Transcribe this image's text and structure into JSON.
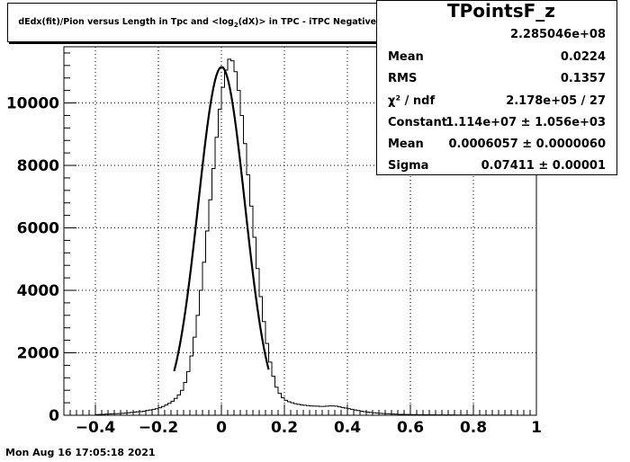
{
  "title_box": {
    "title": "dEdx(fit)/Pion versus Length in Tpc and <log",
    "subscript": "2",
    "title_rest": "(dX)> in TPC - iTPC Negative z projection"
  },
  "stats": {
    "name": "TPointsF_z",
    "rows": [
      {
        "label": "",
        "value": "2.285046e+08"
      },
      {
        "label": "Mean",
        "value": "0.0224"
      },
      {
        "label": "RMS",
        "value": "0.1357"
      },
      {
        "label": "χ² / ndf",
        "value": "2.178e+05 / 27"
      },
      {
        "label": "Constant",
        "value": "1.114e+07 ± 1.056e+03"
      },
      {
        "label": "Mean",
        "value": "0.0006057 ± 0.0000060"
      },
      {
        "label": "Sigma",
        "value": "0.07411 ± 0.00001"
      }
    ]
  },
  "timestamp": "Mon Aug 16 17:05:18 2021",
  "chart_data": {
    "type": "bar",
    "title": "dEdx(fit)/Pion versus Length in Tpc and <log2(dX)> in TPC - iTPC Negative z projection",
    "xlim": [
      -0.5,
      1.0
    ],
    "ylim": [
      0,
      11800
    ],
    "grid": true,
    "xticks": [
      "−0.4",
      "−0.2",
      "0",
      "0.2",
      "0.4",
      "0.6",
      "0.8",
      "1"
    ],
    "xtick_values": [
      -0.4,
      -0.2,
      0,
      0.2,
      0.4,
      0.6,
      0.8,
      1.0
    ],
    "yticks": [
      "0",
      "2000",
      "4000",
      "6000",
      "8000",
      "10000"
    ],
    "ytick_values": [
      0,
      2000,
      4000,
      6000,
      8000,
      10000
    ],
    "histogram": {
      "bin_width": 0.01,
      "start": -0.5,
      "values": [
        0,
        0,
        0,
        0,
        0,
        0,
        0,
        0,
        0,
        0,
        20,
        25,
        30,
        35,
        40,
        45,
        50,
        55,
        60,
        70,
        80,
        90,
        100,
        110,
        120,
        130,
        150,
        170,
        190,
        210,
        240,
        280,
        330,
        380,
        450,
        540,
        650,
        800,
        1050,
        1400,
        1900,
        2500,
        3200,
        4000,
        4900,
        5900,
        6900,
        7900,
        8900,
        9800,
        10500,
        11050,
        11400,
        11350,
        11000,
        10400,
        9600,
        8700,
        7700,
        6700,
        5700,
        4700,
        3800,
        3000,
        2300,
        1700,
        1250,
        900,
        700,
        560,
        480,
        430,
        400,
        370,
        350,
        330,
        320,
        310,
        300,
        295,
        290,
        285,
        285,
        290,
        300,
        300,
        290,
        270,
        250,
        230,
        210,
        190,
        170,
        150,
        130,
        115,
        100,
        90,
        80,
        70,
        60,
        55,
        50,
        45,
        40,
        35,
        30,
        28,
        26,
        24,
        22,
        20,
        18,
        17,
        16,
        15,
        14,
        13,
        12,
        11,
        10,
        10,
        9,
        9,
        8,
        8,
        7,
        7,
        6,
        6,
        5,
        5,
        5,
        4,
        4,
        4,
        3,
        3,
        3,
        2,
        2,
        2,
        2,
        1,
        1,
        1,
        1,
        1,
        1,
        1
      ]
    },
    "fit": {
      "function": "gaus",
      "amplitude": 11150,
      "mean": 0.0006057,
      "sigma": 0.07411,
      "range": [
        -0.15,
        0.15
      ]
    }
  }
}
